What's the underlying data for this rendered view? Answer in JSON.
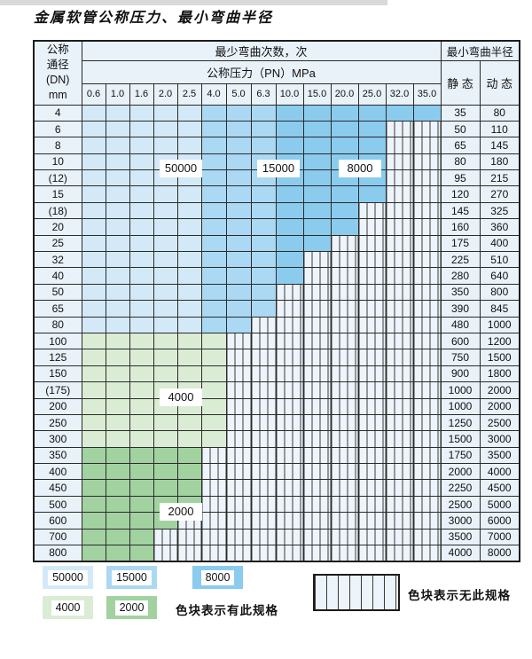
{
  "title": "金属软管公称压力、最小弯曲半径",
  "table": {
    "corner_header_lines": [
      "公称",
      "通径",
      "(DN)",
      "mm"
    ],
    "bend_times_header": "最少弯曲次数，次",
    "pressure_header": "公称压力（PN）MPa",
    "radius_header": "最小弯曲半径",
    "static_header": "静 态",
    "dynamic_header": "动 态",
    "pressure_columns": [
      "0.6",
      "1.0",
      "1.6",
      "2.0",
      "2.5",
      "4.0",
      "5.0",
      "6.3",
      "10.0",
      "15.0",
      "20.0",
      "25.0",
      "32.0",
      "35.0"
    ],
    "zone_by_blue_column": [
      "z50000",
      "z50000",
      "z50000",
      "z50000",
      "z50000",
      "z15000",
      "z15000",
      "z15000",
      "z8000",
      "z8000",
      "z8000",
      "z8000",
      "z8000",
      "z8000"
    ],
    "rows": [
      {
        "dn": "4",
        "colored": 14,
        "family": "blue",
        "static": "35",
        "dynamic": "80"
      },
      {
        "dn": "6",
        "colored": 12,
        "family": "blue",
        "static": "50",
        "dynamic": "110"
      },
      {
        "dn": "8",
        "colored": 12,
        "family": "blue",
        "static": "65",
        "dynamic": "145"
      },
      {
        "dn": "10",
        "colored": 12,
        "family": "blue",
        "static": "80",
        "dynamic": "180"
      },
      {
        "dn": "(12)",
        "colored": 12,
        "family": "blue",
        "static": "95",
        "dynamic": "215"
      },
      {
        "dn": "15",
        "colored": 12,
        "family": "blue",
        "static": "120",
        "dynamic": "270"
      },
      {
        "dn": "(18)",
        "colored": 11,
        "family": "blue",
        "static": "145",
        "dynamic": "325"
      },
      {
        "dn": "20",
        "colored": 11,
        "family": "blue",
        "static": "160",
        "dynamic": "360"
      },
      {
        "dn": "25",
        "colored": 10,
        "family": "blue",
        "static": "175",
        "dynamic": "400"
      },
      {
        "dn": "32",
        "colored": 9,
        "family": "blue",
        "static": "225",
        "dynamic": "510"
      },
      {
        "dn": "40",
        "colored": 9,
        "family": "blue",
        "static": "280",
        "dynamic": "640"
      },
      {
        "dn": "50",
        "colored": 8,
        "family": "blue",
        "static": "350",
        "dynamic": "800"
      },
      {
        "dn": "65",
        "colored": 8,
        "family": "blue",
        "static": "390",
        "dynamic": "845"
      },
      {
        "dn": "80",
        "colored": 7,
        "family": "blue",
        "static": "480",
        "dynamic": "1000"
      },
      {
        "dn": "100",
        "colored": 6,
        "family": "g4000",
        "static": "600",
        "dynamic": "1200"
      },
      {
        "dn": "125",
        "colored": 6,
        "family": "g4000",
        "static": "750",
        "dynamic": "1500"
      },
      {
        "dn": "150",
        "colored": 6,
        "family": "g4000",
        "static": "900",
        "dynamic": "1800"
      },
      {
        "dn": "(175)",
        "colored": 6,
        "family": "g4000",
        "static": "1000",
        "dynamic": "2000"
      },
      {
        "dn": "200",
        "colored": 6,
        "family": "g4000",
        "static": "1000",
        "dynamic": "2000"
      },
      {
        "dn": "250",
        "colored": 6,
        "family": "g4000",
        "static": "1250",
        "dynamic": "2500"
      },
      {
        "dn": "300",
        "colored": 6,
        "family": "g4000",
        "static": "1500",
        "dynamic": "3000"
      },
      {
        "dn": "350",
        "colored": 5,
        "family": "g2000",
        "static": "1750",
        "dynamic": "3500"
      },
      {
        "dn": "400",
        "colored": 5,
        "family": "g2000",
        "static": "2000",
        "dynamic": "4000"
      },
      {
        "dn": "450",
        "colored": 5,
        "family": "g2000",
        "static": "2250",
        "dynamic": "4500"
      },
      {
        "dn": "500",
        "colored": 5,
        "family": "g2000",
        "static": "2500",
        "dynamic": "5000"
      },
      {
        "dn": "600",
        "colored": 4,
        "family": "g2000",
        "static": "3000",
        "dynamic": "6000"
      },
      {
        "dn": "700",
        "colored": 3,
        "family": "g2000",
        "static": "3500",
        "dynamic": "7000"
      },
      {
        "dn": "800",
        "colored": 3,
        "family": "g2000",
        "static": "4000",
        "dynamic": "8000"
      }
    ]
  },
  "overlays": [
    {
      "text": "50000"
    },
    {
      "text": "15000"
    },
    {
      "text": "8000"
    },
    {
      "text": "4000"
    },
    {
      "text": "2000"
    }
  ],
  "legend": {
    "swatches": [
      {
        "label": "50000"
      },
      {
        "label": "15000"
      },
      {
        "label": "8000"
      },
      {
        "label": "4000"
      },
      {
        "label": "2000"
      }
    ],
    "available_note": "色块表示有此规格",
    "unavailable_note": "色块表示无此规格"
  },
  "colors": {
    "c50000": "#d3e9f8",
    "c15000": "#abd8f2",
    "c8000": "#8bcbee",
    "c4000": "#dbecd5",
    "c2000": "#a1d2a0",
    "hatch_bg": "#eef4fb",
    "header_bg": "#e9f1f9"
  }
}
